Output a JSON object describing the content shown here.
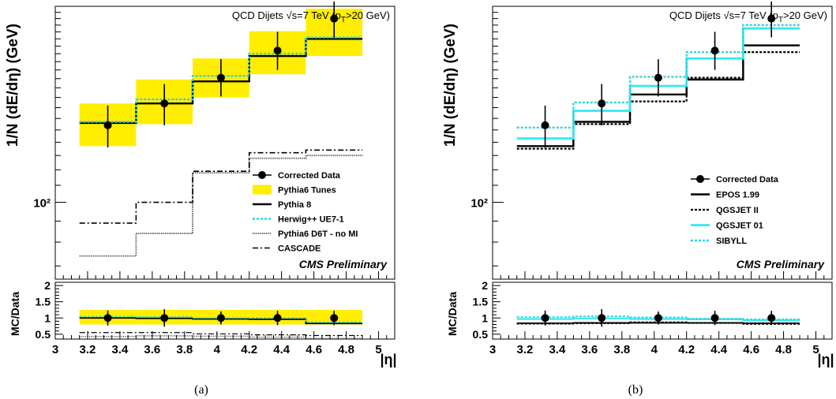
{
  "chart_data": [
    {
      "type": "line",
      "title": "QCD Dijets √s=7 TeV (p_T>20 GeV)",
      "caption": "(a)",
      "ylabel": "1/N (dE/dη) (GeV)",
      "ratio_ylabel": "MC/Data",
      "xlabel": "|η|",
      "yscale": "log",
      "ylim": [
        65,
        300
      ],
      "y_tick_label": "10²",
      "xlim": [
        3.0,
        5.1
      ],
      "x_ticks": [
        "3",
        "3.2",
        "3.4",
        "3.6",
        "3.8",
        "4",
        "4.2",
        "4.4",
        "4.6",
        "4.8",
        "5"
      ],
      "ratio_ylim": [
        0.35,
        2.1
      ],
      "ratio_ticks": [
        "0.5",
        "1",
        "1.5",
        "2"
      ],
      "annotation": "CMS Preliminary",
      "bin_edges": [
        3.15,
        3.5,
        3.85,
        4.2,
        4.55,
        4.9
      ],
      "data": {
        "name": "Corrected Data",
        "x": [
          3.325,
          3.675,
          4.025,
          4.375,
          4.725
        ],
        "y": [
          154,
          174,
          201,
          234,
          280
        ],
        "err_low": [
          18,
          20,
          20,
          24,
          28
        ],
        "err_high": [
          18,
          20,
          22,
          26,
          28
        ],
        "ratio": [
          1.0,
          1.0,
          1.0,
          1.0,
          1.0
        ],
        "ratio_err": [
          0.23,
          0.27,
          0.2,
          0.22,
          0.22
        ]
      },
      "band": {
        "name": "Pythia6 Tunes",
        "low": [
          137,
          155,
          180,
          205,
          227
        ],
        "high": [
          174,
          199,
          224,
          261,
          296
        ]
      },
      "series": [
        {
          "name": "Pythia 8",
          "style": "solid",
          "color": "#000000",
          "width": 2.4,
          "values": [
            156,
            174,
            197,
            227,
            250
          ],
          "ratio": [
            1.0,
            0.99,
            0.97,
            0.96,
            0.83
          ]
        },
        {
          "name": "Herwig++ UE7-1",
          "style": "dotted",
          "color": "#33d3dc",
          "width": 2.4,
          "values": [
            157,
            178,
            203,
            230,
            252
          ],
          "ratio": [
            1.04,
            1.03,
            1.0,
            1.0,
            0.87
          ]
        },
        {
          "name": "Pythia6 D6T - no MI",
          "style": "fine",
          "color": "#555555",
          "width": 2.0,
          "values": [
            74,
            84,
            118,
            128,
            130
          ],
          "ratio": [
            0.43,
            0.45,
            0.44,
            0.41,
            0.37
          ]
        },
        {
          "name": "CASCADE",
          "style": "dashdot",
          "color": "#000000",
          "width": 1.6,
          "values": [
            89,
            100,
            119,
            132,
            134
          ],
          "ratio": [
            0.55,
            0.55,
            0.51,
            0.48,
            0.46
          ]
        }
      ],
      "legend": {
        "placement": "center-right",
        "entries": [
          "Corrected Data",
          "Pythia6 Tunes",
          "Pythia 8",
          "Herwig++ UE7-1",
          "Pythia6 D6T - no MI",
          "CASCADE"
        ]
      }
    },
    {
      "type": "line",
      "title": "QCD Dijets √s=7 TeV (p_T>20 GeV)",
      "caption": "(b)",
      "ylabel": "1/N (dE/dη) (GeV)",
      "ratio_ylabel": "MC/Data",
      "xlabel": "|η|",
      "yscale": "log",
      "ylim": [
        65,
        300
      ],
      "y_tick_label": "10²",
      "xlim": [
        3.0,
        5.1
      ],
      "x_ticks": [
        "3",
        "3.2",
        "3.4",
        "3.6",
        "3.8",
        "4",
        "4.2",
        "4.4",
        "4.6",
        "4.8",
        "5"
      ],
      "ratio_ylim": [
        0.35,
        2.1
      ],
      "ratio_ticks": [
        "0.5",
        "1",
        "1.5",
        "2"
      ],
      "annotation": "CMS Preliminary",
      "bin_edges": [
        3.15,
        3.5,
        3.85,
        4.2,
        4.55,
        4.9
      ],
      "data": {
        "name": "Corrected Data",
        "x": [
          3.325,
          3.675,
          4.025,
          4.375,
          4.725
        ],
        "y": [
          154,
          174,
          201,
          234,
          280
        ],
        "err_low": [
          18,
          20,
          20,
          24,
          28
        ],
        "err_high": [
          18,
          20,
          22,
          26,
          28
        ],
        "ratio": [
          1.0,
          1.0,
          1.0,
          1.0,
          1.0
        ],
        "ratio_err": [
          0.23,
          0.27,
          0.2,
          0.22,
          0.22
        ]
      },
      "series": [
        {
          "name": "EPOS 1.99",
          "style": "solid",
          "color": "#000000",
          "width": 2.4,
          "values": [
            137,
            157,
            183,
            199,
            241
          ],
          "ratio": [
            0.84,
            0.85,
            0.85,
            0.85,
            0.84
          ]
        },
        {
          "name": "QGSJET II",
          "style": "dotted",
          "color": "#000000",
          "width": 2.2,
          "values": [
            135,
            155,
            176,
            201,
            232
          ],
          "ratio": [
            0.82,
            0.83,
            0.87,
            0.84,
            0.81
          ]
        },
        {
          "name": "QGSJET 01",
          "style": "solid",
          "color": "#33e8f0",
          "width": 2.8,
          "values": [
            143,
            167,
            192,
            224,
            265
          ],
          "ratio": [
            0.97,
            0.99,
            0.97,
            0.96,
            0.93
          ]
        },
        {
          "name": "SIBYLL",
          "style": "dotted",
          "color": "#33d3dc",
          "width": 2.4,
          "values": [
            152,
            175,
            202,
            232,
            270
          ],
          "ratio": [
            1.03,
            1.05,
            1.02,
            0.98,
            0.96
          ]
        }
      ],
      "legend": {
        "placement": "center-right",
        "entries": [
          "Corrected Data",
          "EPOS 1.99",
          "QGSJET II",
          "QGSJET 01",
          "SIBYLL"
        ]
      }
    }
  ]
}
